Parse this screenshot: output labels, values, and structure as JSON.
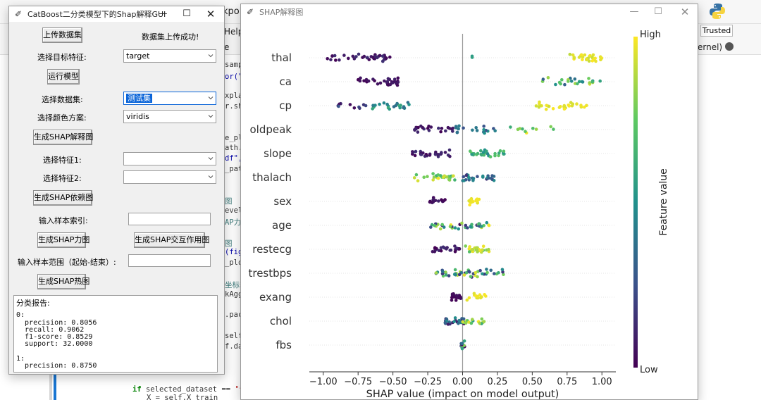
{
  "background": {
    "top_partial": "kpoi",
    "menu_help": "Help",
    "toolbar_partial": "e",
    "trusted": "Trusted",
    "kernel": "ernel)",
    "code_lines": [
      "samp",
      "or(\"绘",
      "",
      "xplai",
      "r.sha",
      "",
      "",
      "e_plo",
      "ath.j",
      "df\",",
      "_path",
      "",
      "",
      "图",
      "evel(",
      "AP力图",
      "",
      "图",
      "(figs",
      "_plot",
      "",
      "坐标轴",
      "kAgg(",
      "",
      ".pack",
      "",
      "self)",
      "f.dat"
    ],
    "code_bottom_1": "if selected_dataset == \"训练",
    "code_bottom_2": "X = self.X_train"
  },
  "gui": {
    "title": "CatBoost二分类模型下的Shap解释GUI",
    "upload_btn": "上传数据集",
    "upload_status": "数据集上传成功!",
    "target_label": "选择目标特征:",
    "target_value": "target",
    "run_btn": "运行模型",
    "dataset_label": "选择数据集:",
    "dataset_value": "测试集",
    "color_label": "选择颜色方案:",
    "color_value": "viridis",
    "shap_plot_btn": "生成SHAP解释图",
    "feature1_label": "选择特征1:",
    "feature2_label": "选择特征2:",
    "dependence_btn": "生成SHAP依赖图",
    "index_label": "输入样本索引:",
    "force_btn": "生成SHAP力图",
    "interaction_btn": "生成SHAP交互作用图",
    "range_label": "输入样本范围（起始-结束）:",
    "heatmap_btn": "生成SHAP热图",
    "report_lines": [
      "分类报告:",
      "",
      "0:",
      "  precision: 0.8056",
      "  recall: 0.9062",
      "  f1-score: 0.8529",
      "  support: 32.0000",
      "",
      "1:",
      "  precision: 0.8750"
    ]
  },
  "shap_window": {
    "title": "SHAP解释图"
  },
  "chart_data": {
    "type": "scatter",
    "subtype": "shap-beeswarm-summary",
    "title": "",
    "xlabel": "SHAP value (impact on model output)",
    "ylabel": "",
    "xlim": [
      -1.1,
      1.1
    ],
    "xticks": [
      -1.0,
      -0.75,
      -0.5,
      -0.25,
      0.0,
      0.25,
      0.5,
      0.75,
      1.0
    ],
    "xtick_labels": [
      "−1.00",
      "−0.75",
      "−0.50",
      "−0.25",
      "0.00",
      "0.25",
      "0.50",
      "0.75",
      "1.00"
    ],
    "colormap": "viridis",
    "colorbar": {
      "label": "Feature value",
      "high": "High",
      "low": "Low"
    },
    "features": [
      {
        "name": "thal",
        "clusters": [
          {
            "from": -0.97,
            "to": -0.52,
            "n": 38,
            "color": [
              0.0,
              0.15
            ]
          },
          {
            "from": -0.02,
            "to": 0.08,
            "n": 2,
            "color": [
              0.5,
              0.6
            ]
          },
          {
            "from": 0.75,
            "to": 1.0,
            "n": 30,
            "color": [
              0.9,
              1.0
            ]
          }
        ]
      },
      {
        "name": "ca",
        "clusters": [
          {
            "from": -0.75,
            "to": -0.45,
            "n": 32,
            "color": [
              0.0,
              0.1
            ]
          },
          {
            "from": 0.56,
            "to": 0.99,
            "n": 26,
            "color": [
              0.3,
              0.95
            ]
          }
        ]
      },
      {
        "name": "cp",
        "clusters": [
          {
            "from": -0.92,
            "to": -0.63,
            "n": 12,
            "color": [
              0.0,
              0.3
            ]
          },
          {
            "from": -0.65,
            "to": -0.38,
            "n": 22,
            "color": [
              0.35,
              0.65
            ]
          },
          {
            "from": 0.5,
            "to": 0.92,
            "n": 28,
            "color": [
              0.92,
              1.0
            ]
          }
        ]
      },
      {
        "name": "oldpeak",
        "clusters": [
          {
            "from": -0.36,
            "to": -0.06,
            "n": 22,
            "color": [
              0.0,
              0.15
            ]
          },
          {
            "from": -0.05,
            "to": 0.25,
            "n": 18,
            "color": [
              0.25,
              0.55
            ]
          },
          {
            "from": 0.3,
            "to": 0.68,
            "n": 10,
            "color": [
              0.6,
              1.0
            ]
          }
        ]
      },
      {
        "name": "slope",
        "clusters": [
          {
            "from": -0.36,
            "to": -0.08,
            "n": 28,
            "color": [
              0.0,
              0.15
            ]
          },
          {
            "from": 0.04,
            "to": 0.3,
            "n": 30,
            "color": [
              0.45,
              0.75
            ]
          }
        ]
      },
      {
        "name": "thalach",
        "clusters": [
          {
            "from": -0.4,
            "to": -0.02,
            "n": 26,
            "color": [
              0.55,
              1.0
            ]
          },
          {
            "from": 0.0,
            "to": 0.23,
            "n": 26,
            "color": [
              0.15,
              0.5
            ]
          }
        ]
      },
      {
        "name": "sex",
        "clusters": [
          {
            "from": -0.24,
            "to": -0.1,
            "n": 16,
            "color": [
              0.0,
              0.1
            ]
          },
          {
            "from": 0.04,
            "to": 0.12,
            "n": 18,
            "color": [
              0.95,
              1.0
            ]
          }
        ]
      },
      {
        "name": "age",
        "clusters": [
          {
            "from": -0.26,
            "to": 0.2,
            "n": 38,
            "color": [
              0.0,
              1.0
            ]
          }
        ]
      },
      {
        "name": "restecg",
        "clusters": [
          {
            "from": -0.22,
            "to": -0.02,
            "n": 26,
            "color": [
              0.0,
              0.15
            ]
          },
          {
            "from": 0.02,
            "to": 0.2,
            "n": 28,
            "color": [
              0.7,
              1.0
            ]
          }
        ]
      },
      {
        "name": "trestbps",
        "clusters": [
          {
            "from": -0.2,
            "to": 0.3,
            "n": 46,
            "color": [
              0.1,
              1.0
            ]
          }
        ]
      },
      {
        "name": "exang",
        "clusters": [
          {
            "from": -0.08,
            "to": -0.01,
            "n": 22,
            "color": [
              0.0,
              0.08
            ]
          },
          {
            "from": 0.02,
            "to": 0.17,
            "n": 14,
            "color": [
              0.93,
              1.0
            ]
          }
        ]
      },
      {
        "name": "chol",
        "clusters": [
          {
            "from": -0.13,
            "to": 0.02,
            "n": 26,
            "color": [
              0.0,
              0.5
            ]
          },
          {
            "from": 0.0,
            "to": 0.16,
            "n": 18,
            "color": [
              0.55,
              1.0
            ]
          }
        ]
      },
      {
        "name": "fbs",
        "clusters": [
          {
            "from": -0.015,
            "to": 0.015,
            "n": 12,
            "color": [
              0.0,
              1.0
            ]
          }
        ]
      }
    ]
  }
}
